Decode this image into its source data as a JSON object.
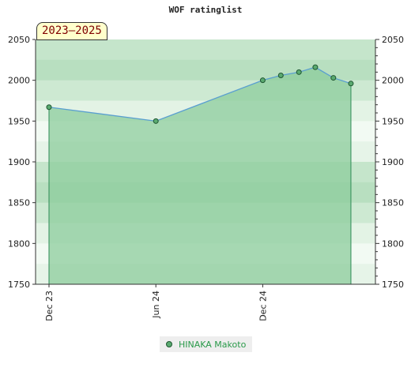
{
  "chart_data": {
    "type": "line",
    "title": "WOF ratinglist",
    "period_label": "2023–2025",
    "y_ticks": [
      1750,
      1800,
      1850,
      1900,
      1950,
      2000,
      2050
    ],
    "ylim": [
      1750,
      2050
    ],
    "x_ticks": [
      {
        "label": "Dec 23",
        "x": "2023-12-01"
      },
      {
        "label": "Jun 24",
        "x": "2024-06-01"
      },
      {
        "label": "Dec 24",
        "x": "2024-12-01"
      }
    ],
    "xlim": [
      "2023-11-08",
      "2025-06-12"
    ],
    "series": [
      {
        "name": "HINAKA Makoto",
        "points": [
          {
            "x": "2023-12-01",
            "y": 1967
          },
          {
            "x": "2024-06-01",
            "y": 1950
          },
          {
            "x": "2024-12-01",
            "y": 2000
          },
          {
            "x": "2025-01-01",
            "y": 2006
          },
          {
            "x": "2025-02-01",
            "y": 2010
          },
          {
            "x": "2025-03-01",
            "y": 2016
          },
          {
            "x": "2025-04-01",
            "y": 2003
          },
          {
            "x": "2025-05-01",
            "y": 1996
          }
        ]
      }
    ],
    "legend_position": "bottom-center",
    "colors": {
      "line": "#5a9fd0",
      "fill": "#8ccc9c",
      "marker": "#5aaa70",
      "marker_edge": "#1e5530",
      "legend_text": "#2a9a4a"
    }
  }
}
